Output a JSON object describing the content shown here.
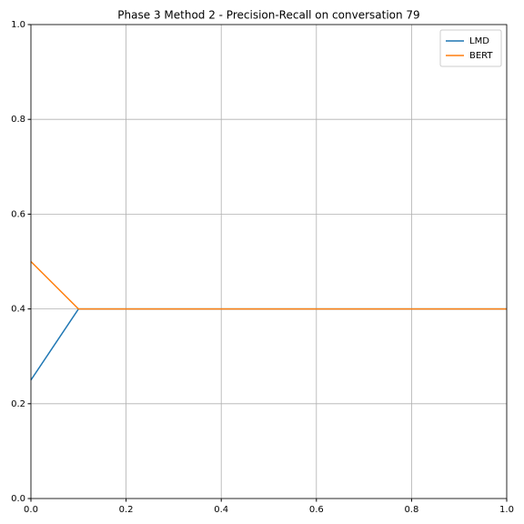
{
  "chart_data": {
    "type": "line",
    "title": "Phase 3 Method 2 - Precision-Recall on conversation 79",
    "x": [
      0,
      0.1,
      1
    ],
    "series": [
      {
        "name": "LMD",
        "color": "#1f77b4",
        "values": [
          0.25,
          0.4,
          0.4
        ]
      },
      {
        "name": "BERT",
        "color": "#ff7f0e",
        "values": [
          0.5,
          0.4,
          0.4
        ]
      }
    ],
    "xlim": [
      0,
      1
    ],
    "ylim": [
      0,
      1
    ],
    "xticks": [
      {
        "value": 0,
        "label": "0.0"
      },
      0.2,
      0.4,
      0.6,
      0.8,
      {
        "value": 1,
        "label": "1.0"
      }
    ],
    "yticks": [
      {
        "value": 0,
        "label": "0.0"
      },
      0.2,
      0.4,
      0.6,
      0.8,
      {
        "value": 1,
        "label": "1.0"
      }
    ],
    "grid": true,
    "legend": "upper-right"
  }
}
